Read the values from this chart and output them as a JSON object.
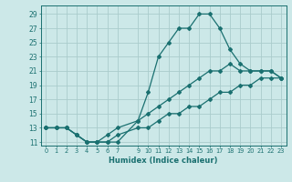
{
  "xlabel": "Humidex (Indice chaleur)",
  "background_color": "#cce8e8",
  "grid_color": "#aacccc",
  "line_color": "#1a7070",
  "x_ticks": [
    0,
    1,
    2,
    3,
    4,
    5,
    6,
    7,
    9,
    10,
    11,
    12,
    13,
    14,
    15,
    16,
    17,
    18,
    19,
    20,
    21,
    22,
    23
  ],
  "xlim": [
    -0.5,
    23.5
  ],
  "ylim": [
    10.5,
    30.2
  ],
  "yticks": [
    11,
    13,
    15,
    17,
    19,
    21,
    23,
    25,
    27,
    29
  ],
  "series": [
    {
      "x": [
        0,
        1,
        2,
        3,
        4,
        5,
        6,
        7,
        9,
        10,
        11,
        12,
        13,
        14,
        15,
        16,
        17,
        18,
        19,
        20,
        21,
        22,
        23
      ],
      "y": [
        13,
        13,
        13,
        12,
        11,
        11,
        11,
        11,
        14,
        18,
        23,
        25,
        27,
        27,
        29,
        29,
        27,
        24,
        22,
        21,
        21,
        21,
        20
      ]
    },
    {
      "x": [
        0,
        1,
        2,
        3,
        4,
        5,
        6,
        7,
        9,
        10,
        11,
        12,
        13,
        14,
        15,
        16,
        17,
        18,
        19,
        20,
        21,
        22,
        23
      ],
      "y": [
        13,
        13,
        13,
        12,
        11,
        11,
        12,
        13,
        14,
        15,
        16,
        17,
        18,
        19,
        20,
        21,
        21,
        22,
        21,
        21,
        21,
        21,
        20
      ]
    },
    {
      "x": [
        0,
        1,
        2,
        3,
        4,
        5,
        6,
        7,
        9,
        10,
        11,
        12,
        13,
        14,
        15,
        16,
        17,
        18,
        19,
        20,
        21,
        22,
        23
      ],
      "y": [
        13,
        13,
        13,
        12,
        11,
        11,
        11,
        12,
        13,
        13,
        14,
        15,
        15,
        16,
        16,
        17,
        18,
        18,
        19,
        19,
        20,
        20,
        20
      ]
    }
  ]
}
